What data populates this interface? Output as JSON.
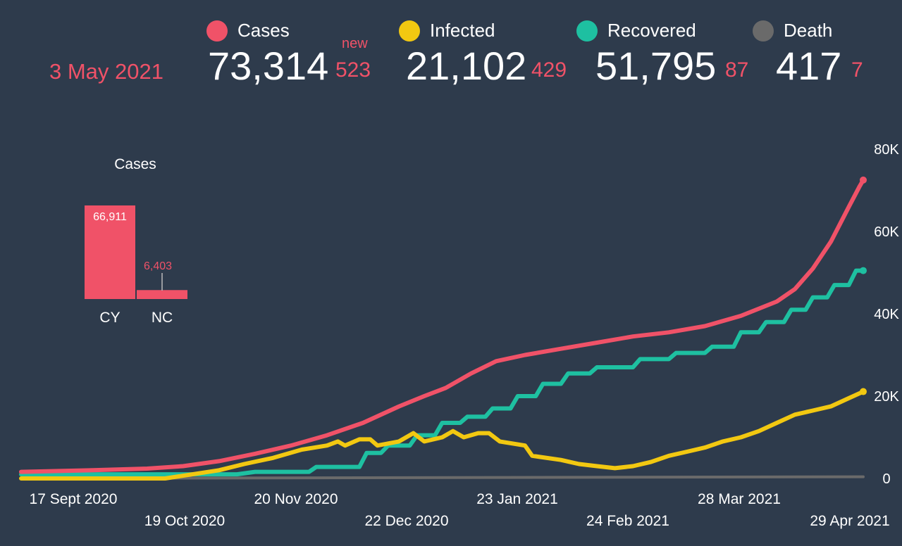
{
  "header": {
    "date": "3 May 2021",
    "new_label": "new",
    "stats": [
      {
        "label": "Cases",
        "value": "73,314",
        "delta": "523",
        "color": "#f05268"
      },
      {
        "label": "Infected",
        "value": "21,102",
        "delta": "429",
        "color": "#f2c811"
      },
      {
        "label": "Recovered",
        "value": "51,795",
        "delta": "87",
        "color": "#1ec0a1"
      },
      {
        "label": "Death",
        "value": "417",
        "delta": "7",
        "color": "#6a6a6a"
      }
    ]
  },
  "chart_data": [
    {
      "type": "bar",
      "title": "Cases",
      "categories": [
        "CY",
        "NC"
      ],
      "values": [
        66911,
        6403
      ],
      "data_labels": [
        "66,911",
        "6,403"
      ],
      "color": "#f05268"
    },
    {
      "type": "line",
      "x_tick_labels": [
        "17 Sept 2020",
        "19 Oct 2020",
        "20 Nov 2020",
        "22 Dec 2020",
        "23 Jan 2021",
        "24 Feb 2021",
        "28 Mar 2021",
        "29 Apr 2021"
      ],
      "y_ticks": [
        0,
        20000,
        40000,
        60000,
        80000
      ],
      "y_tick_labels": [
        "0",
        "20K",
        "40K",
        "60K",
        "80K"
      ],
      "ylim": [
        0,
        80000
      ],
      "grid": false,
      "x_day_range": [
        0,
        234
      ],
      "series": [
        {
          "name": "Cases",
          "color": "#f05268",
          "points": [
            [
              0,
              1600
            ],
            [
              20,
              2000
            ],
            [
              35,
              2400
            ],
            [
              45,
              3000
            ],
            [
              55,
              4200
            ],
            [
              65,
              6000
            ],
            [
              75,
              8000
            ],
            [
              85,
              10500
            ],
            [
              95,
              13500
            ],
            [
              105,
              17500
            ],
            [
              112,
              20000
            ],
            [
              118,
              22000
            ],
            [
              125,
              25500
            ],
            [
              132,
              28500
            ],
            [
              140,
              30000
            ],
            [
              150,
              31500
            ],
            [
              160,
              33000
            ],
            [
              170,
              34500
            ],
            [
              180,
              35500
            ],
            [
              190,
              37000
            ],
            [
              200,
              39500
            ],
            [
              210,
              43000
            ],
            [
              215,
              46000
            ],
            [
              220,
              51000
            ],
            [
              225,
              57500
            ],
            [
              230,
              66000
            ],
            [
              233,
              71000
            ],
            [
              234,
              72500
            ]
          ]
        },
        {
          "name": "Infected",
          "color": "#f2c811",
          "points": [
            [
              0,
              0
            ],
            [
              40,
              0
            ],
            [
              55,
              2000
            ],
            [
              62,
              3500
            ],
            [
              70,
              5000
            ],
            [
              78,
              7000
            ],
            [
              85,
              8000
            ],
            [
              88,
              9000
            ],
            [
              90,
              8000
            ],
            [
              94,
              9500
            ],
            [
              97,
              9500
            ],
            [
              99,
              8000
            ],
            [
              105,
              9000
            ],
            [
              109,
              11000
            ],
            [
              112,
              9000
            ],
            [
              117,
              10000
            ],
            [
              120,
              11500
            ],
            [
              123,
              10000
            ],
            [
              127,
              11000
            ],
            [
              130,
              11000
            ],
            [
              133,
              9000
            ],
            [
              140,
              8000
            ],
            [
              142,
              5500
            ],
            [
              150,
              4500
            ],
            [
              155,
              3500
            ],
            [
              160,
              3000
            ],
            [
              165,
              2500
            ],
            [
              170,
              3000
            ],
            [
              175,
              4000
            ],
            [
              180,
              5500
            ],
            [
              185,
              6500
            ],
            [
              190,
              7500
            ],
            [
              195,
              9000
            ],
            [
              200,
              10000
            ],
            [
              205,
              11500
            ],
            [
              210,
              13500
            ],
            [
              215,
              15500
            ],
            [
              220,
              16500
            ],
            [
              225,
              17500
            ],
            [
              230,
              19500
            ],
            [
              234,
              21102
            ]
          ]
        },
        {
          "name": "Recovered",
          "color": "#1ec0a1",
          "points": [
            [
              0,
              1000
            ],
            [
              60,
              1000
            ],
            [
              65,
              1600
            ],
            [
              80,
              1600
            ],
            [
              82,
              2800
            ],
            [
              94,
              2800
            ],
            [
              96,
              6200
            ],
            [
              100,
              6200
            ],
            [
              102,
              8000
            ],
            [
              108,
              8000
            ],
            [
              110,
              10500
            ],
            [
              115,
              10500
            ],
            [
              117,
              13500
            ],
            [
              122,
              13500
            ],
            [
              124,
              15000
            ],
            [
              129,
              15000
            ],
            [
              131,
              17000
            ],
            [
              136,
              17000
            ],
            [
              138,
              20000
            ],
            [
              143,
              20000
            ],
            [
              145,
              23000
            ],
            [
              150,
              23000
            ],
            [
              152,
              25500
            ],
            [
              158,
              25500
            ],
            [
              160,
              27000
            ],
            [
              170,
              27000
            ],
            [
              172,
              29000
            ],
            [
              180,
              29000
            ],
            [
              182,
              30500
            ],
            [
              190,
              30500
            ],
            [
              192,
              32000
            ],
            [
              198,
              32000
            ],
            [
              200,
              35500
            ],
            [
              205,
              35500
            ],
            [
              207,
              38000
            ],
            [
              212,
              38000
            ],
            [
              214,
              41000
            ],
            [
              218,
              41000
            ],
            [
              220,
              44000
            ],
            [
              224,
              44000
            ],
            [
              226,
              47000
            ],
            [
              230,
              47000
            ],
            [
              232,
              50500
            ],
            [
              234,
              50500
            ]
          ]
        },
        {
          "name": "Death",
          "color": "#6a6a6a",
          "points": [
            [
              0,
              0
            ],
            [
              234,
              417
            ]
          ]
        }
      ]
    }
  ]
}
